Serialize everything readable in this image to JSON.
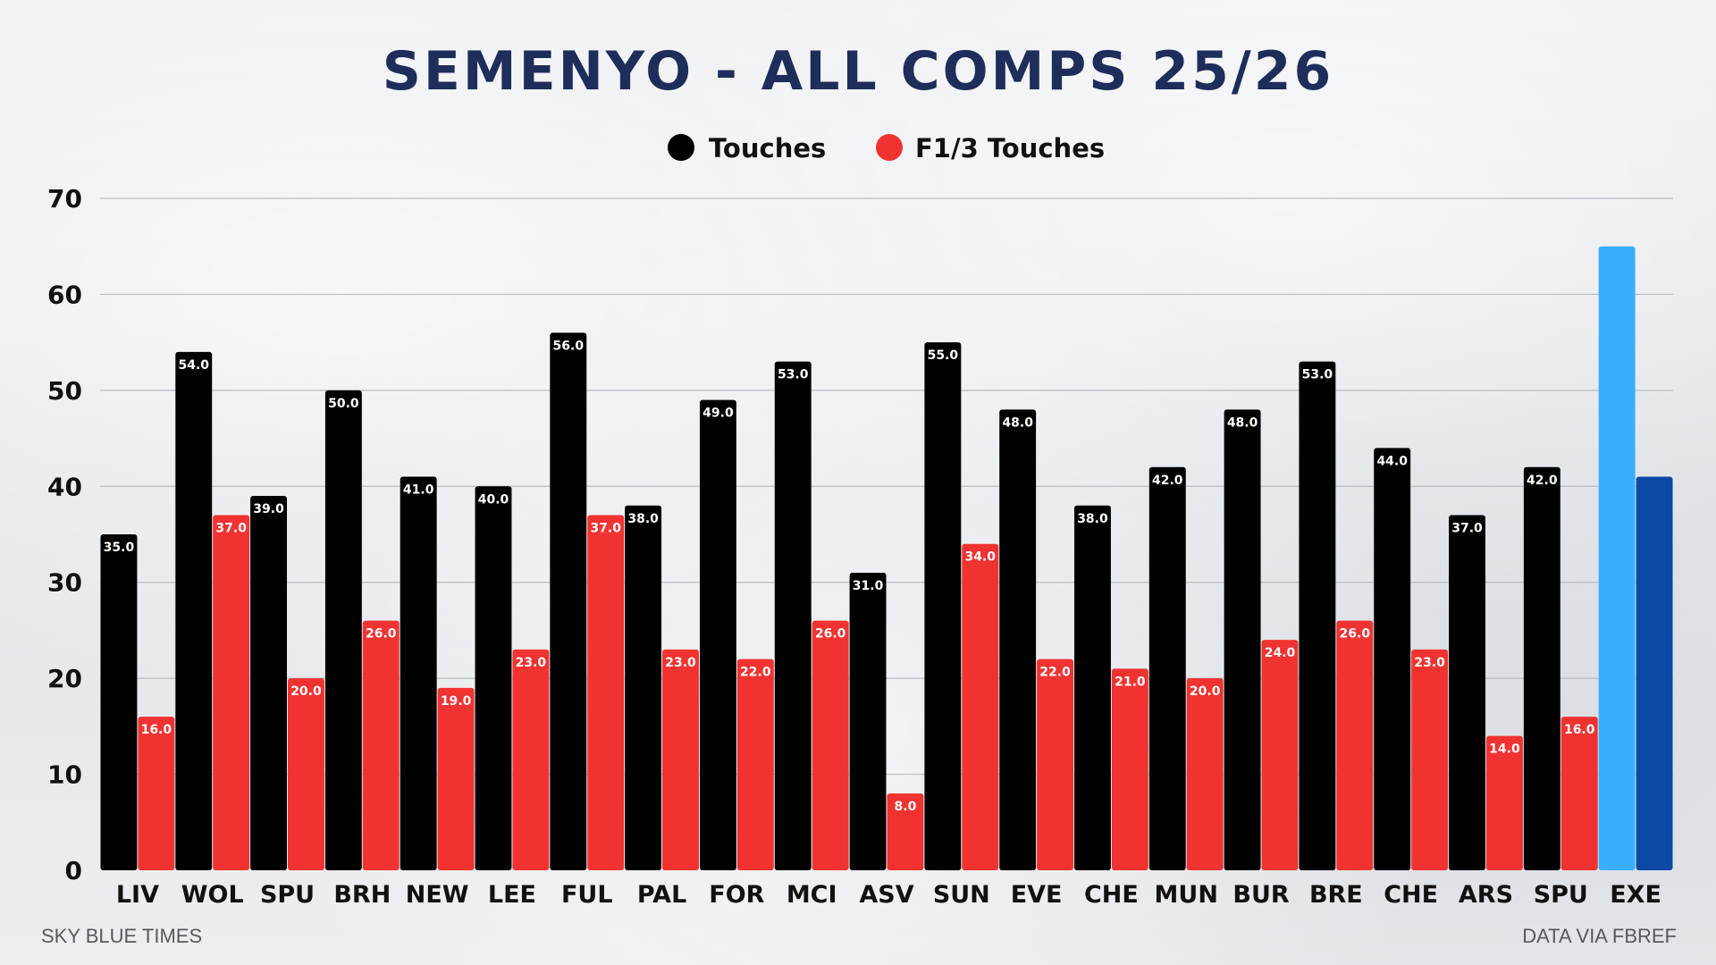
{
  "chart_data": {
    "type": "bar",
    "title": "SEMENYO - ALL COMPS 25/26",
    "categories": [
      "LIV",
      "WOL",
      "SPU",
      "BRH",
      "NEW",
      "LEE",
      "FUL",
      "PAL",
      "FOR",
      "MCI",
      "ASV",
      "SUN",
      "EVE",
      "CHE",
      "MUN",
      "BUR",
      "BRE",
      "CHE",
      "ARS",
      "SPU",
      "EXE"
    ],
    "series": [
      {
        "name": "Touches",
        "color": "#000000",
        "values": [
          35.0,
          54.0,
          39.0,
          50.0,
          41.0,
          40.0,
          56.0,
          38.0,
          49.0,
          53.0,
          31.0,
          55.0,
          48.0,
          38.0,
          42.0,
          48.0,
          53.0,
          44.0,
          37.0,
          42.0,
          65.0
        ],
        "labels": [
          "35.0",
          "54.0",
          "39.0",
          "50.0",
          "41.0",
          "40.0",
          "56.0",
          "38.0",
          "49.0",
          "53.0",
          "31.0",
          "55.0",
          "48.0",
          "38.0",
          "42.0",
          "48.0",
          "53.0",
          "44.0",
          "37.0",
          "42.0",
          ""
        ]
      },
      {
        "name": "F1/3 Touches",
        "color": "#f03331",
        "values": [
          16.0,
          37.0,
          20.0,
          26.0,
          19.0,
          23.0,
          37.0,
          23.0,
          22.0,
          26.0,
          8.0,
          34.0,
          22.0,
          21.0,
          20.0,
          24.0,
          26.0,
          23.0,
          14.0,
          16.0,
          41.0
        ],
        "labels": [
          "16.0",
          "37.0",
          "20.0",
          "26.0",
          "19.0",
          "23.0",
          "37.0",
          "23.0",
          "22.0",
          "26.0",
          "8.0",
          "34.0",
          "22.0",
          "21.0",
          "20.0",
          "24.0",
          "26.0",
          "23.0",
          "14.0",
          "16.0",
          ""
        ]
      }
    ],
    "highlight": {
      "category_index": 20,
      "colors": [
        "#3aaefc",
        "#0b4aa6"
      ]
    },
    "ylim": [
      0,
      70
    ],
    "yticks": [
      "0",
      "10",
      "20",
      "30",
      "40",
      "50",
      "60",
      "70"
    ],
    "xlabel": "",
    "ylabel": "",
    "grid": true,
    "legend_position": "top-center"
  },
  "footer": {
    "left": "SKY BLUE TIMES",
    "right": "DATA VIA FBREF"
  }
}
